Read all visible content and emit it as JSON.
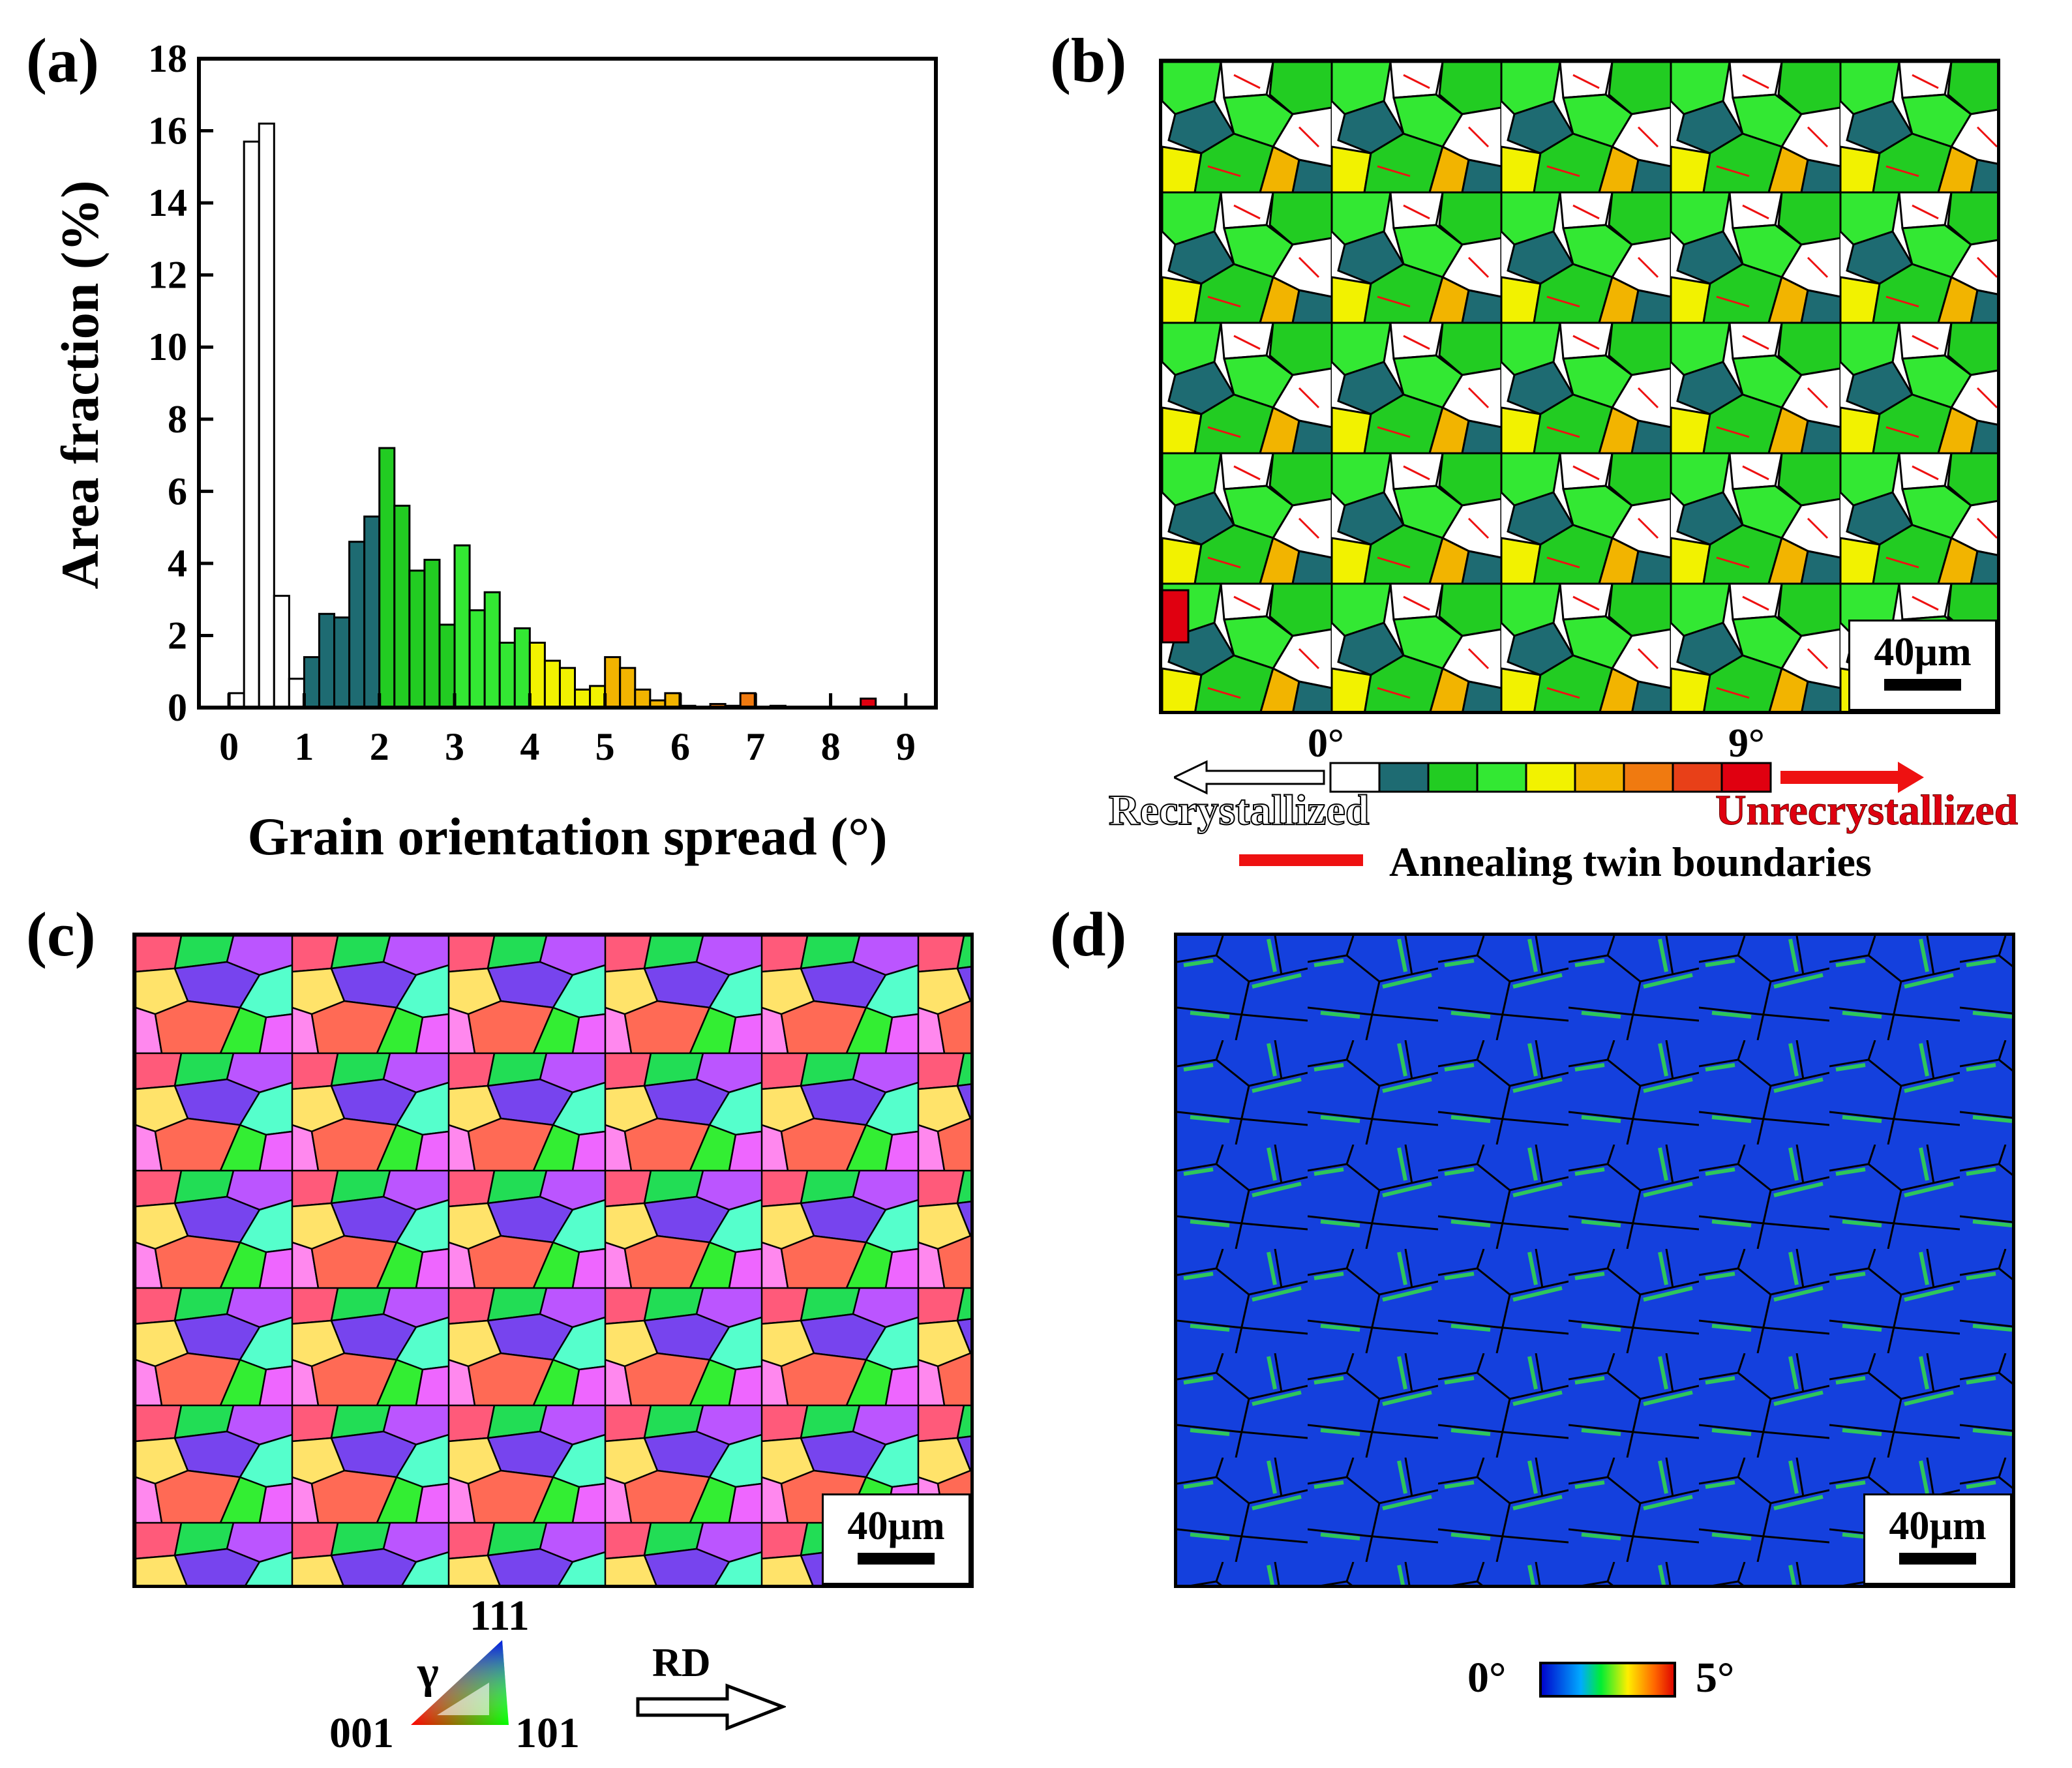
{
  "figure": {
    "panels": {
      "a": {
        "label": "(a)"
      },
      "b": {
        "label": "(b)",
        "scale_bar": "40µm"
      },
      "c": {
        "label": "(c)",
        "scale_bar": "40µm"
      },
      "d": {
        "label": "(d)",
        "scale_bar": "40µm"
      }
    },
    "legend_b": {
      "start_label": "0°",
      "end_label": "9°",
      "left_text": "Recrystallized",
      "right_text": "Unrecrystallized",
      "twin_text": "Annealing twin boundaries",
      "bins": [
        "#ffffff",
        "#1e6b72",
        "#22cc22",
        "#33e833",
        "#f2f200",
        "#f2b400",
        "#f07a10",
        "#e84018",
        "#e00010"
      ],
      "twin_color": "#ee1111"
    },
    "legend_c": {
      "phase": "γ",
      "corner_top": "111",
      "corner_left": "001",
      "corner_right": "101",
      "direction": "RD"
    },
    "legend_d": {
      "min_label": "0°",
      "max_label": "5°"
    }
  },
  "chart_data": {
    "type": "bar",
    "title": "",
    "xlabel": "Grain orientation spread (°)",
    "ylabel": "Area fraction (%)",
    "xlim": [
      -0.4,
      9.4
    ],
    "ylim": [
      0,
      18
    ],
    "xticks": [
      "0",
      "1",
      "2",
      "3",
      "4",
      "5",
      "6",
      "7",
      "8",
      "9"
    ],
    "yticks": [
      "0",
      "2",
      "4",
      "6",
      "8",
      "10",
      "12",
      "14",
      "16",
      "18"
    ],
    "bin_width": 0.2,
    "bins": [
      {
        "x": 0.1,
        "value": 0.4,
        "color": "#ffffff"
      },
      {
        "x": 0.3,
        "value": 15.7,
        "color": "#ffffff"
      },
      {
        "x": 0.5,
        "value": 16.2,
        "color": "#ffffff"
      },
      {
        "x": 0.7,
        "value": 3.1,
        "color": "#ffffff"
      },
      {
        "x": 0.9,
        "value": 0.8,
        "color": "#ffffff"
      },
      {
        "x": 1.1,
        "value": 1.4,
        "color": "#1e6b72"
      },
      {
        "x": 1.3,
        "value": 2.6,
        "color": "#1e6b72"
      },
      {
        "x": 1.5,
        "value": 2.5,
        "color": "#1e6b72"
      },
      {
        "x": 1.7,
        "value": 4.6,
        "color": "#1e6b72"
      },
      {
        "x": 1.9,
        "value": 5.3,
        "color": "#1e6b72"
      },
      {
        "x": 2.1,
        "value": 7.2,
        "color": "#22cc22"
      },
      {
        "x": 2.3,
        "value": 5.6,
        "color": "#22cc22"
      },
      {
        "x": 2.5,
        "value": 3.8,
        "color": "#22cc22"
      },
      {
        "x": 2.7,
        "value": 4.1,
        "color": "#22cc22"
      },
      {
        "x": 2.9,
        "value": 2.3,
        "color": "#22cc22"
      },
      {
        "x": 3.1,
        "value": 4.5,
        "color": "#33e833"
      },
      {
        "x": 3.3,
        "value": 2.7,
        "color": "#33e833"
      },
      {
        "x": 3.5,
        "value": 3.2,
        "color": "#33e833"
      },
      {
        "x": 3.7,
        "value": 1.8,
        "color": "#33e833"
      },
      {
        "x": 3.9,
        "value": 2.2,
        "color": "#33e833"
      },
      {
        "x": 4.1,
        "value": 1.8,
        "color": "#f2f200"
      },
      {
        "x": 4.3,
        "value": 1.3,
        "color": "#f2f200"
      },
      {
        "x": 4.5,
        "value": 1.1,
        "color": "#f2f200"
      },
      {
        "x": 4.7,
        "value": 0.5,
        "color": "#f2f200"
      },
      {
        "x": 4.9,
        "value": 0.6,
        "color": "#f2f200"
      },
      {
        "x": 5.1,
        "value": 1.4,
        "color": "#f2b400"
      },
      {
        "x": 5.3,
        "value": 1.1,
        "color": "#f2b400"
      },
      {
        "x": 5.5,
        "value": 0.5,
        "color": "#f2b400"
      },
      {
        "x": 5.7,
        "value": 0.2,
        "color": "#f2b400"
      },
      {
        "x": 5.9,
        "value": 0.4,
        "color": "#f2b400"
      },
      {
        "x": 6.1,
        "value": 0.05,
        "color": "#f07a10"
      },
      {
        "x": 6.5,
        "value": 0.1,
        "color": "#f07a10"
      },
      {
        "x": 6.7,
        "value": 0.05,
        "color": "#f07a10"
      },
      {
        "x": 6.9,
        "value": 0.4,
        "color": "#f07a10"
      },
      {
        "x": 7.3,
        "value": 0.05,
        "color": "#e84018"
      },
      {
        "x": 8.5,
        "value": 0.25,
        "color": "#e00010"
      }
    ]
  }
}
